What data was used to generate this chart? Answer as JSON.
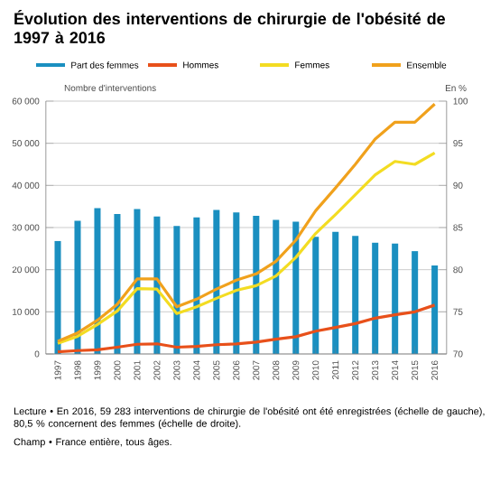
{
  "chart_data": {
    "type": "line",
    "title": "Évolution des interventions de chirurgie de l'obésité de 1997 à 2016",
    "ylabel": "Nombre d'interventions",
    "y2label": "En %",
    "categories": [
      "1997",
      "1998",
      "1999",
      "2000",
      "2001",
      "2002",
      "2003",
      "2004",
      "2005",
      "2006",
      "2007",
      "2008",
      "2009",
      "2010",
      "2011",
      "2012",
      "2013",
      "2014",
      "2015",
      "2016"
    ],
    "series": [
      {
        "name": "Part des femmes",
        "type": "bar",
        "axis": "y2",
        "color": "#1a8fc0",
        "values": [
          83.4,
          85.8,
          87.3,
          86.6,
          87.2,
          86.3,
          85.2,
          86.2,
          87.1,
          86.8,
          86.4,
          85.9,
          85.7,
          83.9,
          84.5,
          84.0,
          83.2,
          83.1,
          82.2,
          80.5
        ]
      },
      {
        "name": "Hommes",
        "color": "#e8501a",
        "values": [
          500,
          800,
          1000,
          1600,
          2300,
          2400,
          1600,
          1800,
          2200,
          2400,
          2800,
          3500,
          4100,
          5400,
          6300,
          7200,
          8500,
          9300,
          10000,
          11600
        ]
      },
      {
        "name": "Femmes",
        "color": "#f3dc22",
        "values": [
          2500,
          4200,
          7000,
          10200,
          15500,
          15400,
          9600,
          11200,
          13200,
          15100,
          16200,
          18500,
          22900,
          28600,
          33100,
          37800,
          42500,
          45700,
          45000,
          47700
        ]
      },
      {
        "name": "Ensemble",
        "color": "#f0a11c",
        "values": [
          3000,
          5000,
          8000,
          11800,
          17800,
          17800,
          11200,
          13000,
          15400,
          17500,
          19000,
          22000,
          27000,
          34000,
          39400,
          45000,
          51000,
          55000,
          55000,
          59300
        ]
      }
    ],
    "ylim": [
      0,
      60000
    ],
    "yticks": [
      {
        "value": 0,
        "label": "0"
      },
      {
        "value": 10000,
        "label": "10 000"
      },
      {
        "value": 20000,
        "label": "20 000"
      },
      {
        "value": 30000,
        "label": "30 000"
      },
      {
        "value": 40000,
        "label": "40 000"
      },
      {
        "value": 50000,
        "label": "50 000"
      },
      {
        "value": 60000,
        "label": "60 000"
      }
    ],
    "y2lim": [
      70,
      100
    ],
    "y2ticks": [
      70,
      75,
      80,
      85,
      90,
      95,
      100
    ],
    "grid": "y",
    "legend": "top",
    "annotations": [
      "Lecture • En 2016, 59 283 interventions de chirurgie de l'obésité ont été enregistrées (échelle de gauche), 80,5 % concernent des femmes (échelle de droite).",
      "Champ • France entière, tous âges."
    ]
  }
}
